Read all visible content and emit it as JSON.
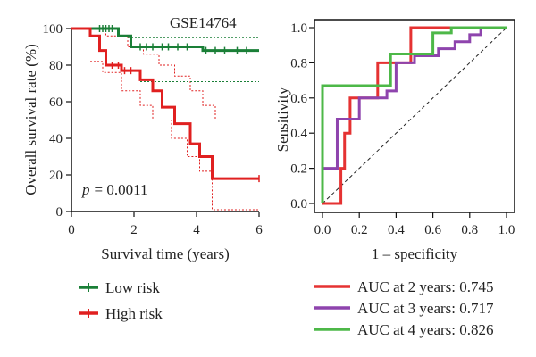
{
  "chart_data": [
    {
      "type": "line",
      "subtype": "kaplan-meier",
      "title": "GSE14764",
      "xlabel": "Survival time (years)",
      "ylabel": "Overall survival rate (%)",
      "xlim": [
        0,
        6
      ],
      "ylim": [
        0,
        100
      ],
      "xticks": [
        "0",
        "2",
        "4",
        "6"
      ],
      "yticks": [
        "0",
        "20",
        "40",
        "60",
        "80",
        "100"
      ],
      "annotation": {
        "p_symbol": "p",
        "p_value": "= 0.0011"
      },
      "legend_position": "bottom-left",
      "series": [
        {
          "name": "Low risk",
          "color": "#1a7f37",
          "steps": [
            [
              0,
              100
            ],
            [
              1.5,
              100
            ],
            [
              1.5,
              96
            ],
            [
              1.9,
              96
            ],
            [
              1.9,
              90
            ],
            [
              4.2,
              90
            ],
            [
              4.2,
              88
            ],
            [
              6,
              88
            ]
          ],
          "censor_x": [
            0.9,
            1.0,
            1.1,
            1.2,
            1.3,
            2.2,
            2.4,
            2.6,
            2.9,
            3.1,
            3.4,
            3.7,
            4.3,
            4.6,
            4.9,
            5.3,
            5.6
          ]
        },
        {
          "name": "High risk",
          "color": "#e02020",
          "steps": [
            [
              0,
              100
            ],
            [
              0.6,
              100
            ],
            [
              0.6,
              96
            ],
            [
              0.9,
              96
            ],
            [
              0.9,
              88
            ],
            [
              1.1,
              88
            ],
            [
              1.1,
              80
            ],
            [
              1.6,
              80
            ],
            [
              1.6,
              77
            ],
            [
              2.2,
              77
            ],
            [
              2.2,
              72
            ],
            [
              2.6,
              72
            ],
            [
              2.6,
              66
            ],
            [
              2.9,
              66
            ],
            [
              2.9,
              57
            ],
            [
              3.3,
              57
            ],
            [
              3.3,
              48
            ],
            [
              3.8,
              48
            ],
            [
              3.8,
              37
            ],
            [
              4.1,
              37
            ],
            [
              4.1,
              30
            ],
            [
              4.5,
              30
            ],
            [
              4.5,
              18
            ],
            [
              6,
              18
            ]
          ],
          "censor_x": [
            1.3,
            1.5,
            1.7,
            1.9,
            6.0
          ],
          "ci_upper": [
            [
              0,
              100
            ],
            [
              0.7,
              100
            ],
            [
              1.1,
              96
            ],
            [
              1.8,
              90
            ],
            [
              2.3,
              86
            ],
            [
              2.8,
              80
            ],
            [
              3.3,
              74
            ],
            [
              3.8,
              66
            ],
            [
              4.2,
              58
            ],
            [
              4.6,
              50
            ],
            [
              6,
              50
            ]
          ],
          "ci_lower": [
            [
              0.6,
              82
            ],
            [
              1.0,
              76
            ],
            [
              1.6,
              66
            ],
            [
              2.2,
              58
            ],
            [
              2.6,
              50
            ],
            [
              3.2,
              40
            ],
            [
              3.7,
              30
            ],
            [
              4.1,
              22
            ],
            [
              4.5,
              1
            ],
            [
              6,
              1
            ]
          ]
        }
      ],
      "low_ci": {
        "upper": 95,
        "lower": 71
      }
    },
    {
      "type": "line",
      "subtype": "roc",
      "xlabel": "1 – specificity",
      "ylabel": "Sensitivity",
      "xlim": [
        0,
        1
      ],
      "ylim": [
        0,
        1
      ],
      "xticks": [
        "0.0",
        "0.2",
        "0.4",
        "0.6",
        "0.8",
        "1.0"
      ],
      "yticks": [
        "0.0",
        "0.2",
        "0.4",
        "0.6",
        "0.8",
        "1.0"
      ],
      "legend_position": "bottom",
      "series": [
        {
          "name": "AUC at 2 years: 0.745",
          "color": "#e53232",
          "points": [
            [
              0,
              0
            ],
            [
              0.05,
              0
            ],
            [
              0.1,
              0
            ],
            [
              0.1,
              0.2
            ],
            [
              0.12,
              0.2
            ],
            [
              0.12,
              0.4
            ],
            [
              0.15,
              0.4
            ],
            [
              0.15,
              0.6
            ],
            [
              0.3,
              0.6
            ],
            [
              0.3,
              0.8
            ],
            [
              0.48,
              0.8
            ],
            [
              0.48,
              1.0
            ],
            [
              1,
              1
            ]
          ]
        },
        {
          "name": "AUC at 3 years: 0.717",
          "color": "#8e44ad",
          "points": [
            [
              0,
              0
            ],
            [
              0,
              0.2
            ],
            [
              0.08,
              0.2
            ],
            [
              0.08,
              0.48
            ],
            [
              0.2,
              0.48
            ],
            [
              0.2,
              0.6
            ],
            [
              0.35,
              0.6
            ],
            [
              0.35,
              0.64
            ],
            [
              0.4,
              0.64
            ],
            [
              0.4,
              0.8
            ],
            [
              0.5,
              0.8
            ],
            [
              0.5,
              0.84
            ],
            [
              0.63,
              0.84
            ],
            [
              0.63,
              0.88
            ],
            [
              0.72,
              0.88
            ],
            [
              0.72,
              0.92
            ],
            [
              0.8,
              0.92
            ],
            [
              0.8,
              0.96
            ],
            [
              0.86,
              0.96
            ],
            [
              0.86,
              1.0
            ],
            [
              1,
              1
            ]
          ]
        },
        {
          "name": "AUC at 4 years: 0.826",
          "color": "#4db848",
          "points": [
            [
              0,
              0
            ],
            [
              0,
              0.67
            ],
            [
              0.37,
              0.67
            ],
            [
              0.37,
              0.85
            ],
            [
              0.6,
              0.85
            ],
            [
              0.6,
              0.97
            ],
            [
              0.7,
              0.97
            ],
            [
              0.7,
              1.0
            ],
            [
              1,
              1
            ]
          ]
        }
      ],
      "reference_line": true
    }
  ]
}
